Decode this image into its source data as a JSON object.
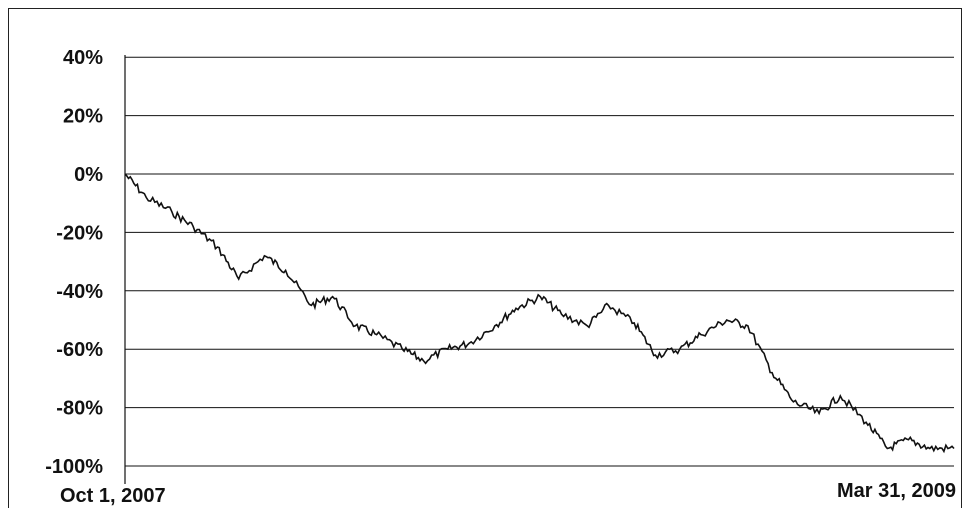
{
  "chart_data": {
    "type": "line",
    "title": "",
    "xlabel": "",
    "ylabel": "",
    "x_start_label": "Oct 1, 2007",
    "x_end_label": "Mar 31, 2009",
    "xlim": [
      "2007-10-01",
      "2009-03-31"
    ],
    "ylim": [
      -100,
      50
    ],
    "y_ticks": [
      40,
      20,
      0,
      -20,
      -40,
      -60,
      -80,
      -100
    ],
    "y_tick_labels": [
      "40%",
      "20%",
      "0%",
      "-20%",
      "-40%",
      "-60%",
      "-80%",
      "-100%"
    ],
    "grid": true,
    "line_color": "#111111",
    "series": [
      {
        "x": [
          "2007-10-01",
          "2007-10-15",
          "2007-11-01",
          "2007-11-15",
          "2007-12-01",
          "2007-12-15",
          "2008-01-01",
          "2008-01-15",
          "2008-02-01",
          "2008-02-15",
          "2008-03-01",
          "2008-03-15",
          "2008-04-01",
          "2008-04-15",
          "2008-05-01",
          "2008-05-15",
          "2008-06-01",
          "2008-06-15",
          "2008-07-01",
          "2008-07-15",
          "2008-08-01",
          "2008-08-15",
          "2008-09-01",
          "2008-09-15",
          "2008-10-01",
          "2008-10-15",
          "2008-11-01",
          "2008-11-15",
          "2008-12-01",
          "2008-12-15",
          "2009-01-01",
          "2009-01-15",
          "2009-02-01",
          "2009-02-15",
          "2009-03-01",
          "2009-03-15",
          "2009-03-31"
        ],
        "values": [
          0,
          -8,
          -13,
          -18,
          -25,
          -36,
          -28,
          -33,
          -45,
          -42,
          -52,
          -55,
          -60,
          -64,
          -60,
          -58,
          -52,
          -46,
          -42,
          -48,
          -52,
          -45,
          -51,
          -62,
          -60,
          -55,
          -50,
          -52,
          -68,
          -78,
          -82,
          -76,
          -85,
          -94,
          -91,
          -94,
          -94
        ]
      }
    ]
  }
}
